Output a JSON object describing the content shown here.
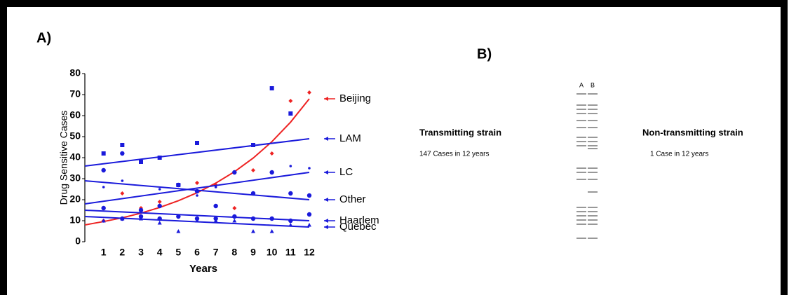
{
  "chart_data": {
    "type": "scatter",
    "x_label": "Years",
    "y_label": "Drug Sensitive Cases",
    "xlim": [
      0,
      12
    ],
    "ylim": [
      0,
      80
    ],
    "xticks": [
      1,
      2,
      3,
      4,
      5,
      6,
      7,
      8,
      9,
      10,
      11,
      12
    ],
    "yticks": [
      0,
      10,
      20,
      30,
      40,
      50,
      60,
      70,
      80
    ],
    "x": [
      1,
      2,
      3,
      4,
      5,
      6,
      7,
      8,
      9,
      10,
      11,
      12
    ],
    "series": [
      {
        "name": "Beijing",
        "color": "#ee2222",
        "marker": "diamond",
        "values": [
          10,
          23,
          16,
          19,
          27,
          28,
          27,
          16,
          34,
          42,
          67,
          71
        ],
        "trend": {
          "x": [
            0,
            1,
            2,
            3,
            4,
            5,
            6,
            7,
            8,
            9,
            10,
            11,
            12
          ],
          "y": [
            8,
            9.6,
            11.4,
            13.6,
            16.3,
            19.5,
            23.3,
            27.9,
            33.3,
            39.8,
            47.6,
            56.9,
            68
          ]
        }
      },
      {
        "name": "LAM",
        "color": "#1a1adb",
        "marker": "square",
        "values": [
          42,
          46,
          38,
          40,
          27,
          47,
          null,
          null,
          46,
          73,
          61,
          null
        ],
        "trend": {
          "x": [
            0,
            12
          ],
          "y": [
            36,
            49
          ]
        }
      },
      {
        "name": "LC",
        "color": "#1a1adb",
        "marker": "dot",
        "values": [
          26,
          29,
          null,
          25,
          null,
          22,
          26,
          null,
          null,
          33,
          36,
          35
        ],
        "trend": {
          "x": [
            0,
            12
          ],
          "y": [
            18,
            33
          ]
        }
      },
      {
        "name": "Other",
        "color": "#1a1adb",
        "marker": "circle",
        "values": [
          34,
          42,
          15,
          17,
          27,
          24,
          17,
          33,
          23,
          33,
          23,
          22
        ],
        "trend": {
          "x": [
            0,
            12
          ],
          "y": [
            29,
            20
          ]
        }
      },
      {
        "name": "Haarlem",
        "color": "#1a1adb",
        "marker": "circle",
        "values": [
          16,
          11,
          12,
          11,
          12,
          11,
          11,
          12,
          11,
          11,
          10,
          13
        ],
        "trend": {
          "x": [
            0,
            12
          ],
          "y": [
            15,
            10
          ]
        }
      },
      {
        "name": "Quebec",
        "color": "#1a1adb",
        "marker": "triangle",
        "values": [
          10,
          11,
          11,
          9,
          5,
          10,
          10,
          10,
          5,
          5,
          8,
          8
        ],
        "trend": {
          "x": [
            0,
            12
          ],
          "y": [
            12,
            7
          ]
        }
      }
    ]
  },
  "panel_labels": [
    "A)",
    "B)"
  ],
  "gel": {
    "lane_labels": [
      "A",
      "B"
    ],
    "transmitting": {
      "title": "Transmitting strain",
      "caption": "147 Cases in 12 years"
    },
    "non_transmitting": {
      "title": "Non-transmitting strain",
      "caption": "1 Case in 12 years"
    }
  }
}
